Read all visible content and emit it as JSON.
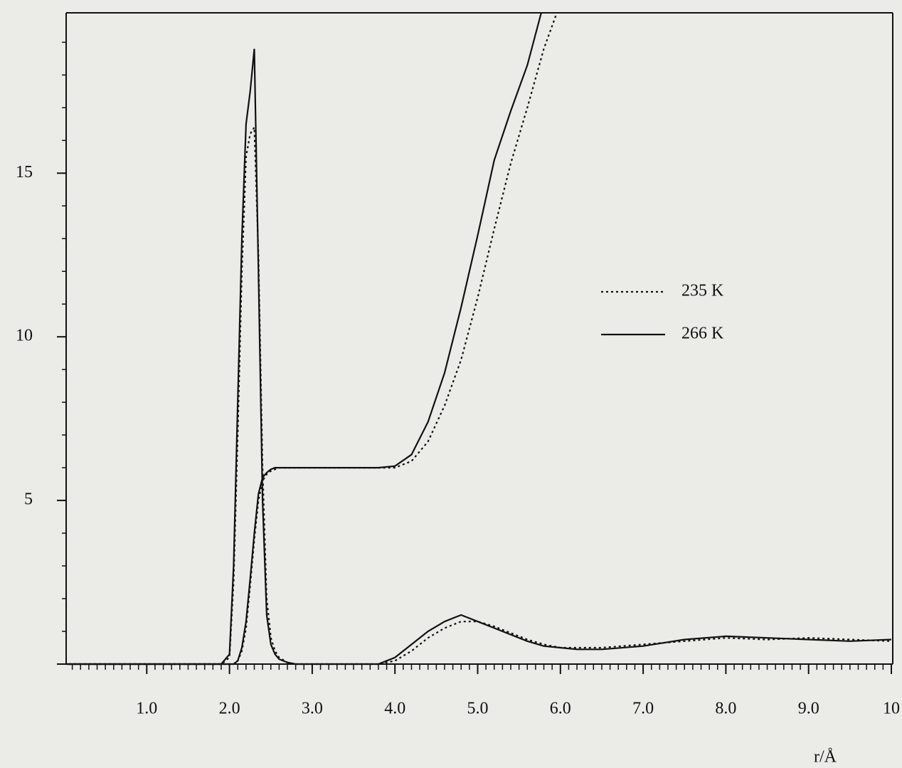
{
  "chart_data": {
    "type": "line",
    "x_label": "r/Å",
    "x": [
      0,
      1.9,
      2.0,
      2.05,
      2.1,
      2.15,
      2.2,
      2.25,
      2.3,
      2.35,
      2.4,
      2.45,
      2.5,
      2.55,
      2.6,
      2.7,
      2.8,
      3.0,
      3.5,
      3.8,
      4.0,
      4.2,
      4.4,
      4.6,
      4.8,
      5.0,
      5.2,
      5.4,
      5.6,
      5.8,
      6.0,
      6.2,
      6.5,
      7.0,
      7.5,
      8.0,
      8.5,
      9.0,
      9.5,
      10.0
    ],
    "series": [
      {
        "name": "235 K",
        "color": "#111111",
        "style": "dotted",
        "values": [
          0,
          0,
          0.2,
          2.5,
          7,
          12,
          15.5,
          16.2,
          16.4,
          12.5,
          6,
          2,
          0.8,
          0.4,
          0.2,
          0.05,
          0,
          0,
          0,
          0,
          0.1,
          0.4,
          0.8,
          1.1,
          1.3,
          1.3,
          1.15,
          0.95,
          0.75,
          0.6,
          0.5,
          0.5,
          0.5,
          0.6,
          0.7,
          0.8,
          0.75,
          0.8,
          0.75,
          0.7
        ],
        "running": [
          0,
          0,
          0,
          0,
          0.1,
          0.4,
          1.1,
          2.4,
          3.8,
          5.0,
          5.6,
          5.8,
          5.9,
          5.95,
          6,
          6,
          6,
          6,
          6,
          6,
          6.0,
          6.2,
          6.8,
          7.9,
          9.3,
          11.2,
          13.3,
          15.3,
          17.0,
          18.8,
          20.2,
          null,
          null,
          null,
          null,
          null,
          null,
          null,
          null,
          null
        ]
      },
      {
        "name": "266 K",
        "color": "#111111",
        "style": "solid",
        "values": [
          0,
          0,
          0.3,
          3,
          8,
          13,
          16.5,
          17.5,
          18.8,
          12,
          5,
          1.5,
          0.6,
          0.3,
          0.15,
          0.05,
          0,
          0,
          0,
          0,
          0.2,
          0.6,
          1.0,
          1.3,
          1.5,
          1.3,
          1.1,
          0.9,
          0.7,
          0.55,
          0.5,
          0.45,
          0.45,
          0.55,
          0.75,
          0.85,
          0.8,
          0.75,
          0.7,
          0.75
        ],
        "running": [
          0,
          0,
          0,
          0,
          0.1,
          0.5,
          1.3,
          2.6,
          4.0,
          5.2,
          5.7,
          5.85,
          5.95,
          6,
          6,
          6,
          6,
          6,
          6,
          6,
          6.05,
          6.4,
          7.4,
          8.9,
          10.9,
          13.1,
          15.4,
          16.9,
          18.3,
          20.2,
          null,
          null,
          null,
          null,
          null,
          null,
          null,
          null,
          null,
          null
        ]
      }
    ],
    "xlim": [
      0,
      10
    ],
    "xticks": [
      {
        "value": 1,
        "label": "1.0"
      },
      {
        "value": 2,
        "label": "2.0"
      },
      {
        "value": 3,
        "label": "3.0"
      },
      {
        "value": 4,
        "label": "4.0"
      },
      {
        "value": 5,
        "label": "5.0"
      },
      {
        "value": 6,
        "label": "6.0"
      },
      {
        "value": 7,
        "label": "7.0"
      },
      {
        "value": 8,
        "label": "8.0"
      },
      {
        "value": 9,
        "label": "9.0"
      },
      10
    ],
    "x_minor_step": 0.1,
    "ylim": [
      0,
      19.9
    ],
    "yticks": [
      5,
      10,
      15
    ],
    "y_minor_step": 1,
    "legend": "right"
  }
}
